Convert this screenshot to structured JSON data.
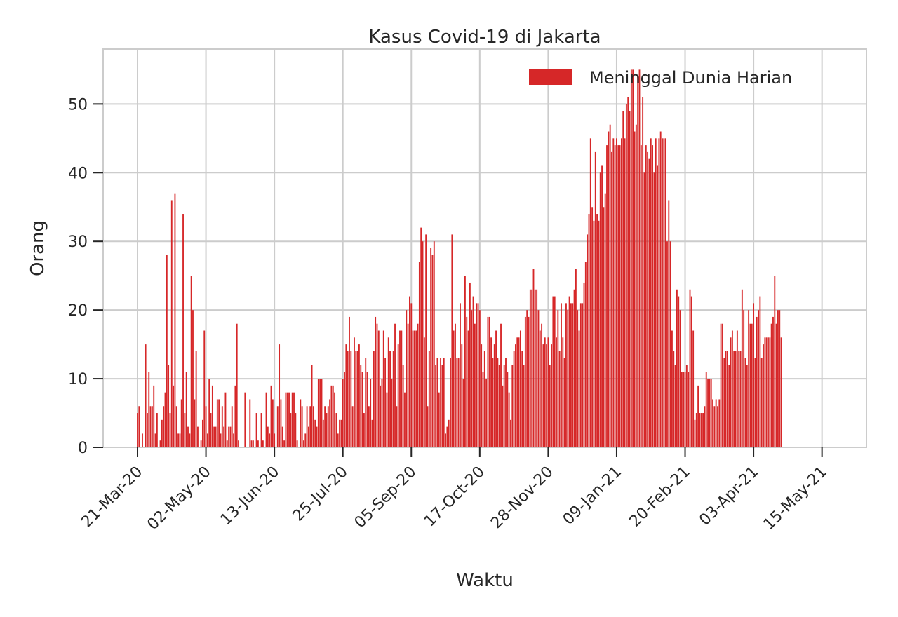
{
  "chart_data": {
    "type": "bar",
    "title": "Kasus Covid-19 di Jakarta",
    "xlabel": "Waktu",
    "ylabel": "Orang",
    "x_start": "2020-03-21",
    "ylim": [
      0,
      58
    ],
    "yticks": [
      0,
      10,
      20,
      30,
      40,
      50
    ],
    "xticks": [
      "21-Mar-20",
      "02-May-20",
      "13-Jun-20",
      "25-Jul-20",
      "05-Sep-20",
      "17-Oct-20",
      "28-Nov-20",
      "09-Jan-21",
      "20-Feb-21",
      "03-Apr-21",
      "15-May-21"
    ],
    "grid": true,
    "legend_position": "top-right",
    "series": [
      {
        "name": "Meninggal Dunia Harian",
        "color": "#d62728",
        "values": [
          5,
          6,
          0,
          2,
          0,
          15,
          5,
          11,
          6,
          6,
          9,
          2,
          5,
          0,
          1,
          4,
          6,
          8,
          28,
          12,
          5,
          36,
          9,
          37,
          6,
          2,
          2,
          7,
          34,
          5,
          11,
          3,
          2,
          25,
          20,
          7,
          14,
          3,
          0,
          1,
          4,
          17,
          6,
          2,
          10,
          5,
          9,
          3,
          3,
          7,
          7,
          2,
          6,
          3,
          8,
          1,
          3,
          3,
          6,
          2,
          9,
          18,
          1,
          0,
          0,
          0,
          8,
          0,
          0,
          7,
          1,
          1,
          0,
          5,
          1,
          0,
          5,
          1,
          0,
          8,
          3,
          2,
          9,
          7,
          2,
          0,
          6,
          15,
          7,
          3,
          1,
          8,
          8,
          8,
          5,
          8,
          8,
          5,
          1,
          0,
          7,
          6,
          1,
          2,
          6,
          3,
          6,
          12,
          6,
          4,
          3,
          10,
          10,
          10,
          4,
          6,
          5,
          6,
          7,
          9,
          9,
          8,
          5,
          2,
          4,
          4,
          10,
          11,
          15,
          14,
          19,
          14,
          6,
          16,
          14,
          14,
          15,
          12,
          11,
          5,
          13,
          11,
          6,
          10,
          4,
          14,
          19,
          18,
          17,
          9,
          10,
          17,
          13,
          8,
          16,
          14,
          10,
          14,
          18,
          6,
          15,
          17,
          17,
          12,
          8,
          20,
          18,
          22,
          21,
          17,
          17,
          17,
          18,
          27,
          32,
          30,
          16,
          31,
          6,
          14,
          29,
          28,
          30,
          12,
          13,
          8,
          13,
          12,
          13,
          2,
          3,
          4,
          13,
          31,
          17,
          18,
          13,
          13,
          21,
          15,
          10,
          25,
          19,
          17,
          24,
          20,
          22,
          18,
          21,
          21,
          20,
          15,
          11,
          14,
          10,
          19,
          19,
          16,
          13,
          15,
          17,
          13,
          12,
          18,
          9,
          12,
          13,
          11,
          8,
          4,
          12,
          14,
          15,
          16,
          16,
          17,
          14,
          12,
          19,
          20,
          19,
          23,
          23,
          26,
          23,
          23,
          20,
          17,
          18,
          15,
          16,
          15,
          16,
          12,
          15,
          22,
          22,
          16,
          20,
          14,
          21,
          16,
          13,
          21,
          20,
          22,
          21,
          21,
          23,
          26,
          20,
          17,
          21,
          21,
          24,
          27,
          31,
          34,
          45,
          35,
          33,
          43,
          34,
          33,
          40,
          41,
          35,
          37,
          44,
          46,
          47,
          43,
          45,
          44,
          45,
          44,
          44,
          45,
          49,
          45,
          50,
          51,
          49,
          55,
          55,
          46,
          47,
          54,
          55,
          44,
          51,
          40,
          44,
          43,
          42,
          45,
          44,
          40,
          45,
          41,
          45,
          46,
          45,
          45,
          45,
          30,
          36,
          30,
          17,
          14,
          12,
          23,
          22,
          20,
          11,
          11,
          11,
          12,
          11,
          23,
          22,
          17,
          4,
          5,
          9,
          5,
          5,
          5,
          6,
          11,
          10,
          10,
          10,
          7,
          6,
          7,
          6,
          7,
          18,
          18,
          13,
          14,
          14,
          12,
          16,
          17,
          14,
          14,
          17,
          14,
          14,
          23,
          20,
          13,
          12,
          20,
          18,
          18,
          21,
          13,
          19,
          20,
          22,
          13,
          15,
          16,
          16,
          16,
          16,
          18,
          19,
          25,
          18,
          20,
          20,
          16
        ]
      }
    ]
  }
}
